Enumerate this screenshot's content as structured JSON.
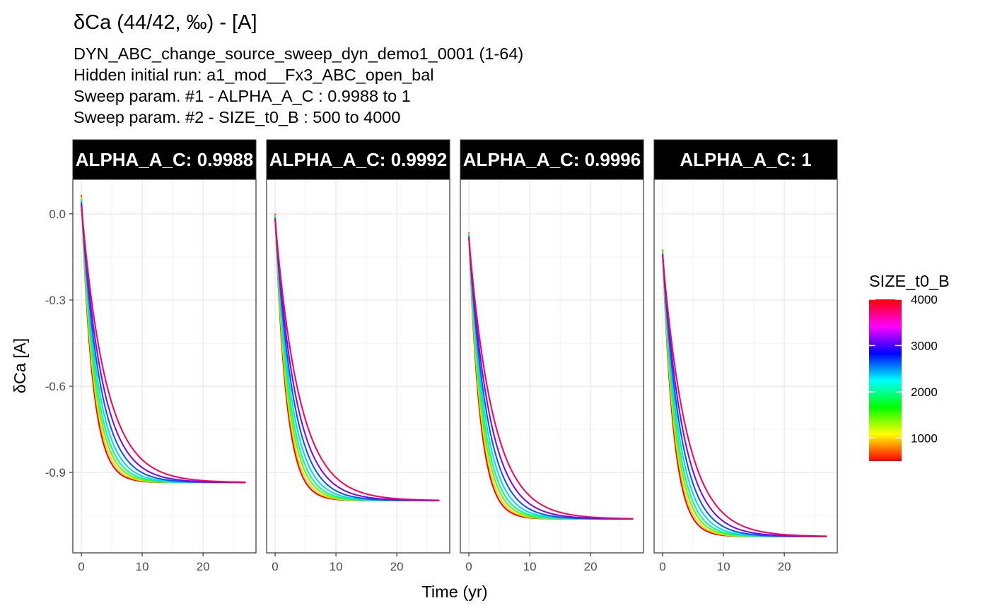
{
  "chart_data": {
    "type": "line",
    "title": "δCa (44/42, ‰) - [A]",
    "subtitle_lines": [
      "DYN_ABC_change_source_sweep_dyn_demo1_0001 (1-64)",
      "Hidden initial run: a1_mod__Fx3_ABC_open_bal",
      "Sweep param. #1 -  ALPHA_A_C :  0.9988 to 1",
      "Sweep param. #2 -  SIZE_t0_B :  500 to 4000"
    ],
    "xlabel": "Time (yr)",
    "ylabel": "δCa [A]",
    "xlim": [
      -1.4,
      28.7
    ],
    "ylim": [
      -1.18,
      0.12
    ],
    "x_ticks": [
      0,
      10,
      20
    ],
    "y_ticks": [
      0.0,
      -0.3,
      -0.6,
      -0.9
    ],
    "y_tick_labels": [
      "0.0",
      "-0.3",
      "-0.6",
      "-0.9"
    ],
    "x_end": 27.2,
    "grid": true,
    "facets": [
      {
        "strip_label": "ALPHA_A_C: 0.9988",
        "start_values": [
          0.065,
          0.06,
          0.055,
          0.05,
          0.045,
          0.04,
          0.035,
          0.03
        ],
        "end_value": -0.935
      },
      {
        "strip_label": "ALPHA_A_C: 0.9992",
        "start_values": [
          0.0,
          -0.003,
          -0.006,
          -0.009,
          -0.012,
          -0.015,
          -0.017,
          -0.02
        ],
        "end_value": -0.998
      },
      {
        "strip_label": "ALPHA_A_C: 0.9996",
        "start_values": [
          -0.065,
          -0.068,
          -0.071,
          -0.074,
          -0.077,
          -0.08,
          -0.082,
          -0.085
        ],
        "end_value": -1.062
      },
      {
        "strip_label": "ALPHA_A_C: 1",
        "start_values": [
          -0.125,
          -0.128,
          -0.131,
          -0.134,
          -0.137,
          -0.14,
          -0.143,
          -0.145
        ],
        "end_value": -1.123
      }
    ],
    "sweep_values": [
      500,
      1000,
      1500,
      2000,
      2500,
      3000,
      3500,
      4000
    ],
    "colors": [
      "#ff0000",
      "#ffd500",
      "#55ff00",
      "#00ff80",
      "#00d5ff",
      "#0055ff",
      "#8000ff",
      "#ff0055"
    ],
    "legend": {
      "title": "SIZE_t0_B",
      "position": "right",
      "min": 500,
      "max": 4000,
      "ticks": [
        1000,
        2000,
        3000,
        4000
      ],
      "tick_labels": [
        "1000",
        "2000",
        "3000",
        "4000"
      ],
      "gradient_stops": [
        "#ff0000",
        "#ffff00",
        "#00ff00",
        "#00ffff",
        "#0000ff",
        "#ff00ff",
        "#ff0000"
      ]
    }
  }
}
